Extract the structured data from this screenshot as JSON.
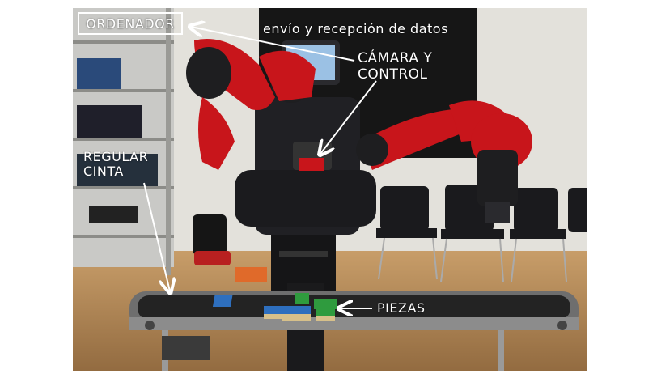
{
  "labels": {
    "ordenador": "ORDENADOR",
    "envio_recepcion": "envío y recepción de datos",
    "camara_line1": "CÁMARA Y",
    "camara_line2": "CONTROL",
    "regular_line1": "REGULAR",
    "regular_line2": "CINTA",
    "piezas": "PIEZAS"
  },
  "colors": {
    "robot_red": "#c8151b",
    "robot_dark": "#1c1c1e",
    "label_text": "#ffffff",
    "floor": "#b98f5a",
    "wall": "#e2e0da",
    "board": "#1a1a1a",
    "block_green": "#2f9b3e",
    "block_blue": "#2e6fbe"
  }
}
